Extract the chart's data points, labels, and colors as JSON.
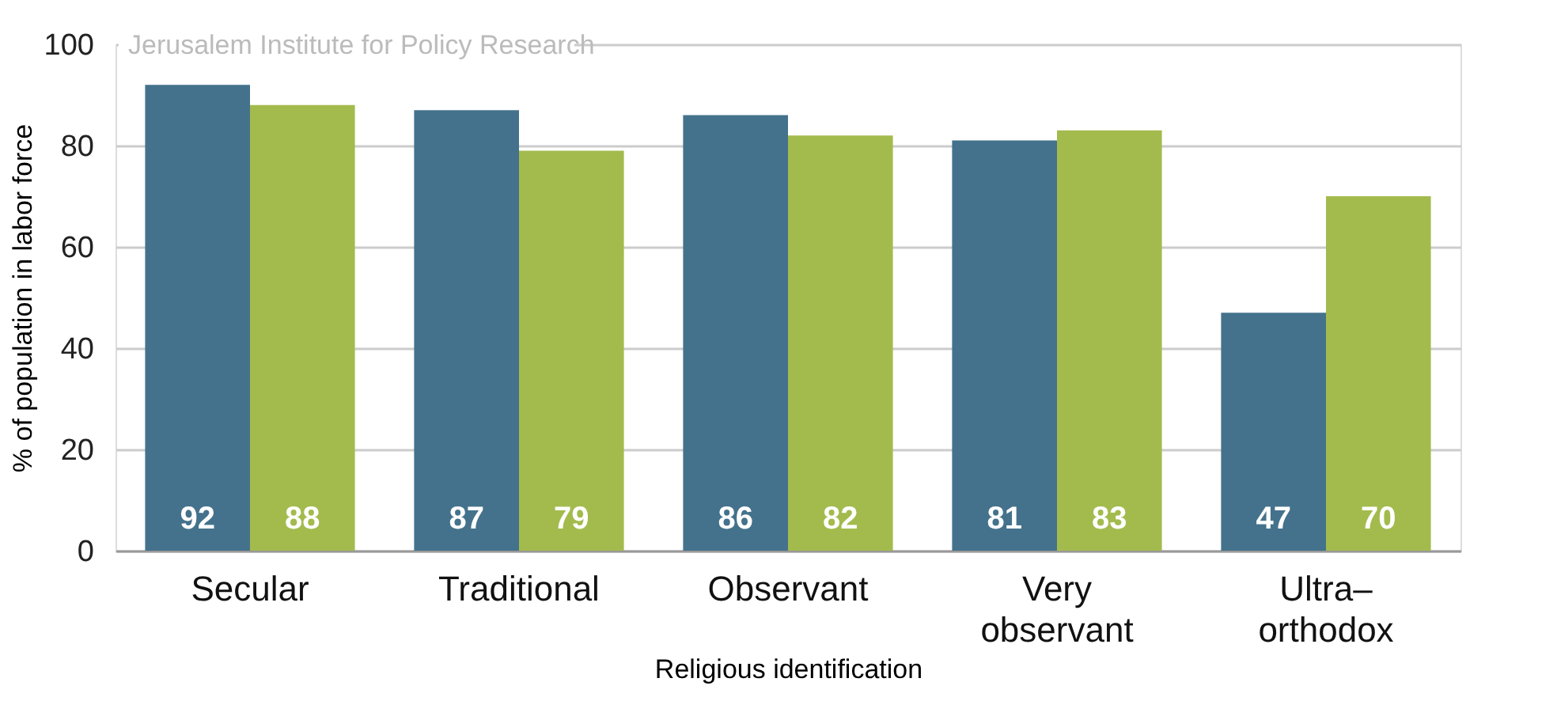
{
  "chart_data": {
    "type": "bar",
    "categories": [
      "Secular",
      "Traditional",
      "Observant",
      "Very observant",
      "Ultra–orthodox"
    ],
    "series": [
      {
        "color": "#44728c",
        "values": [
          92,
          87,
          86,
          81,
          47
        ]
      },
      {
        "color": "#a3bb4d",
        "values": [
          88,
          79,
          82,
          83,
          70
        ]
      }
    ],
    "xlabel": "Religious identification",
    "ylabel": "% of population in labor force",
    "ylim": [
      0,
      100
    ],
    "yticks": [
      0,
      20,
      40,
      60,
      80,
      100
    ],
    "grid": "y",
    "data_labels": true,
    "annotations": [
      "Jerusalem Institute for Policy Research"
    ]
  }
}
